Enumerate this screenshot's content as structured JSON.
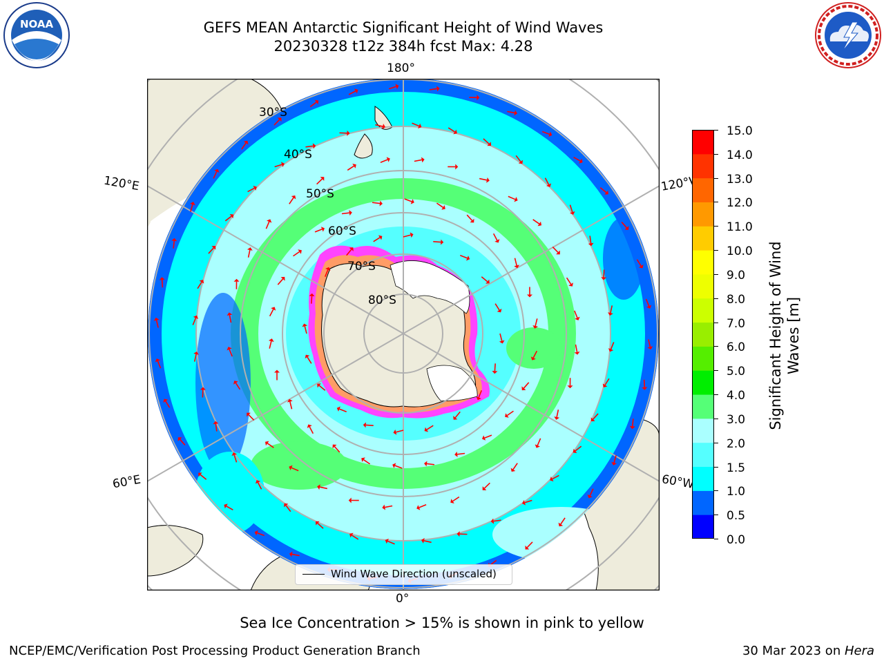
{
  "header": {
    "title_line1": "GEFS MEAN Antarctic Significant Height of Wind Waves",
    "title_line2": "20230328 t12z 384h fcst   Max: 4.28"
  },
  "logos": {
    "left": {
      "text": "NOAA",
      "ring_text": "NATIONAL OCEANIC AND ATMOSPHERIC ADMINISTRATION",
      "bottom_text": "U.S. DEPARTMENT OF COMMERCE"
    },
    "right": {
      "ring_text": "NATIONAL WEATHER SERVICE"
    }
  },
  "map": {
    "projection": "south polar stereographic",
    "lon_labels": {
      "top": "180°",
      "bottom": "0°",
      "upper_left": "120°E",
      "upper_right": "120°W",
      "lower_left": "60°E",
      "lower_right": "60°W"
    },
    "lat_labels": [
      "30°S",
      "40°S",
      "50°S",
      "60°S",
      "70°S",
      "80°S"
    ],
    "legend_label": "Wind Wave Direction (unscaled)",
    "colors": {
      "land": "#eeecdc",
      "ice_shelf": "#ffffff",
      "sea_ice_edge": "#ff44ff",
      "arrow": "#ff0000",
      "grid": "#b0b0b0"
    }
  },
  "colorbar": {
    "label": "Significant Height of Wind Waves [m]",
    "label_line1": "Significant Height of Wind",
    "label_line2": "Waves [m]",
    "ticks": [
      "15.0",
      "14.0",
      "13.0",
      "12.0",
      "11.0",
      "10.0",
      "9.0",
      "8.0",
      "7.0",
      "6.0",
      "5.0",
      "4.0",
      "3.0",
      "2.0",
      "1.5",
      "1.0",
      "0.5",
      "0.0"
    ],
    "colors_bottom_to_top": [
      "#0000ff",
      "#0066ff",
      "#00ffff",
      "#55ffff",
      "#aaffff",
      "#55ff77",
      "#00ee00",
      "#55ee00",
      "#99ee00",
      "#ccff00",
      "#eeff00",
      "#ffff00",
      "#ffcc00",
      "#ff9900",
      "#ff6600",
      "#ff3300",
      "#ff0000"
    ]
  },
  "footer": {
    "note": "Sea Ice Concentration > 15% is shown in pink to yellow",
    "credit": "NCEP/EMC/Verification Post Processing Product Generation Branch",
    "date": "30 Mar 2023 on ",
    "machine": "Hera"
  }
}
